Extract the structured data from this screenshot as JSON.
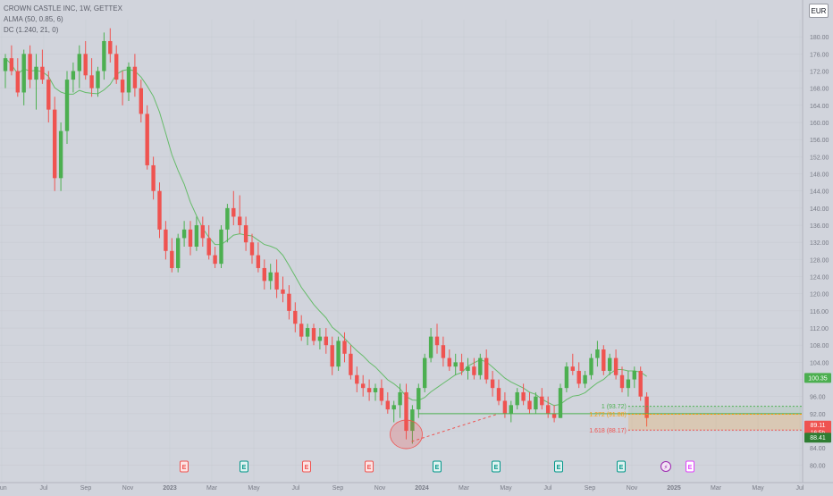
{
  "legend": {
    "title": "CROWN CASTLE INC, 1W, GETTEX",
    "indicator1": "ALMA (50, 0.85, 6)",
    "indicator2": "DC (1.240, 21, 0)"
  },
  "currency_button": "EUR",
  "colors": {
    "background": "#d1d4dc",
    "up": "#4caf50",
    "down": "#ef5350",
    "ma_line": "#66bb6a",
    "fib_green": "#4caf50",
    "fib_orange": "#ff9800",
    "fib_red": "#ef5350"
  },
  "price_labels": {
    "current": "100.35",
    "last_price": "89.11",
    "countdown": "16:5h",
    "fib_low": "88.41"
  },
  "fib_labels": [
    "1 (93.72)",
    "1.272 (91.88)",
    "1.618 (88.17)"
  ],
  "events": [
    {
      "label": "E",
      "kind": "earnings-red"
    },
    {
      "label": "E",
      "kind": "earnings-green"
    },
    {
      "label": "E",
      "kind": "earnings-red"
    },
    {
      "label": "E",
      "kind": "earnings-red"
    },
    {
      "label": "E",
      "kind": "earnings-green"
    },
    {
      "label": "E",
      "kind": "earnings-green"
    },
    {
      "label": "E",
      "kind": "earnings-green"
    },
    {
      "label": "E",
      "kind": "earnings-green"
    },
    {
      "label": "⚡",
      "kind": "split"
    },
    {
      "label": "E",
      "kind": "earnings-future"
    }
  ],
  "chart_data": {
    "type": "candlestick",
    "title": "CROWN CASTLE INC, 1W, GETTEX",
    "y_ticks": [
      180,
      176,
      172,
      168,
      164,
      160,
      156,
      152,
      148,
      144,
      140,
      136,
      132,
      128,
      124,
      120,
      116,
      112,
      108,
      104,
      100,
      96,
      92,
      88,
      84,
      80
    ],
    "ylim": [
      78,
      184
    ],
    "x_ticks": [
      "Jun",
      "Jul",
      "Sep",
      "Nov",
      "2023",
      "Mar",
      "May",
      "Jul",
      "Sep",
      "Nov",
      "2024",
      "Mar",
      "May",
      "Jul",
      "Sep",
      "Nov",
      "2025",
      "Mar",
      "May",
      "Jul"
    ],
    "candles": [
      [
        172,
        176,
        168,
        175
      ],
      [
        175,
        178,
        171,
        172
      ],
      [
        172,
        175,
        166,
        167
      ],
      [
        167,
        177,
        164,
        176
      ],
      [
        176,
        178,
        168,
        170
      ],
      [
        170,
        176,
        163,
        173
      ],
      [
        173,
        177,
        169,
        170
      ],
      [
        170,
        172,
        160,
        163
      ],
      [
        163,
        166,
        144,
        147
      ],
      [
        147,
        160,
        144,
        158
      ],
      [
        158,
        172,
        155,
        170
      ],
      [
        170,
        174,
        167,
        172
      ],
      [
        172,
        178,
        168,
        176
      ],
      [
        176,
        179,
        170,
        171
      ],
      [
        171,
        175,
        166,
        168
      ],
      [
        168,
        173,
        166,
        172
      ],
      [
        172,
        181,
        170,
        179
      ],
      [
        179,
        182,
        174,
        176
      ],
      [
        176,
        178,
        169,
        170
      ],
      [
        170,
        172,
        164,
        167
      ],
      [
        167,
        174,
        165,
        173
      ],
      [
        173,
        176,
        166,
        168
      ],
      [
        168,
        170,
        160,
        162
      ],
      [
        162,
        164,
        149,
        150
      ],
      [
        150,
        152,
        142,
        144
      ],
      [
        144,
        146,
        133,
        135
      ],
      [
        135,
        137,
        128,
        130
      ],
      [
        130,
        133,
        125,
        126
      ],
      [
        126,
        134,
        125,
        133
      ],
      [
        133,
        137,
        131,
        135
      ],
      [
        135,
        137,
        129,
        131
      ],
      [
        131,
        138,
        130,
        136
      ],
      [
        136,
        138,
        131,
        133
      ],
      [
        133,
        136,
        128,
        129
      ],
      [
        129,
        131,
        126,
        127
      ],
      [
        127,
        136,
        126,
        135
      ],
      [
        135,
        141,
        132,
        140
      ],
      [
        140,
        144,
        136,
        138
      ],
      [
        138,
        143,
        134,
        136
      ],
      [
        136,
        138,
        130,
        132
      ],
      [
        132,
        134,
        127,
        129
      ],
      [
        129,
        132,
        125,
        126
      ],
      [
        126,
        128,
        121,
        123
      ],
      [
        123,
        127,
        121,
        125
      ],
      [
        125,
        128,
        119,
        121
      ],
      [
        121,
        124,
        118,
        120
      ],
      [
        120,
        122,
        114,
        116
      ],
      [
        116,
        118,
        111,
        113
      ],
      [
        113,
        115,
        109,
        110
      ],
      [
        110,
        113,
        108,
        112
      ],
      [
        112,
        113,
        108,
        109
      ],
      [
        109,
        112,
        107,
        110
      ],
      [
        110,
        112,
        106,
        108
      ],
      [
        108,
        110,
        101,
        103
      ],
      [
        103,
        110,
        102,
        109
      ],
      [
        109,
        111,
        104,
        106
      ],
      [
        106,
        108,
        100,
        101
      ],
      [
        101,
        103,
        97,
        99
      ],
      [
        99,
        101,
        96,
        98
      ],
      [
        98,
        100,
        95,
        97
      ],
      [
        97,
        99,
        95,
        98
      ],
      [
        98,
        100,
        94,
        95
      ],
      [
        95,
        97,
        92,
        93
      ],
      [
        93,
        95,
        90,
        94
      ],
      [
        94,
        99,
        91,
        97
      ],
      [
        97,
        99,
        86,
        88
      ],
      [
        88,
        94,
        85,
        93
      ],
      [
        93,
        99,
        91,
        98
      ],
      [
        98,
        106,
        97,
        105
      ],
      [
        105,
        112,
        104,
        110
      ],
      [
        110,
        113,
        106,
        108
      ],
      [
        108,
        110,
        103,
        105
      ],
      [
        105,
        107,
        102,
        103
      ],
      [
        103,
        106,
        101,
        104
      ],
      [
        104,
        106,
        101,
        102
      ],
      [
        102,
        105,
        100,
        103
      ],
      [
        103,
        105,
        100,
        101
      ],
      [
        101,
        106,
        100,
        105
      ],
      [
        105,
        107,
        99,
        100
      ],
      [
        100,
        102,
        96,
        98
      ],
      [
        98,
        100,
        94,
        95
      ],
      [
        95,
        97,
        91,
        92
      ],
      [
        92,
        95,
        90,
        94
      ],
      [
        94,
        98,
        93,
        97
      ],
      [
        97,
        99,
        94,
        95
      ],
      [
        95,
        97,
        92,
        93
      ],
      [
        93,
        97,
        92,
        96
      ],
      [
        96,
        98,
        93,
        94
      ],
      [
        94,
        96,
        91,
        92
      ],
      [
        92,
        94,
        90,
        91
      ],
      [
        91,
        99,
        91,
        98
      ],
      [
        98,
        104,
        97,
        103
      ],
      [
        103,
        106,
        101,
        102
      ],
      [
        102,
        104,
        98,
        99
      ],
      [
        99,
        102,
        98,
        101
      ],
      [
        101,
        106,
        100,
        105
      ],
      [
        105,
        109,
        103,
        107
      ],
      [
        107,
        108,
        101,
        102
      ],
      [
        102,
        106,
        101,
        105
      ],
      [
        105,
        107,
        100,
        101
      ],
      [
        101,
        103,
        97,
        98
      ],
      [
        98,
        102,
        96,
        100
      ],
      [
        100,
        103,
        98,
        102
      ],
      [
        102,
        103,
        95,
        96
      ],
      [
        96,
        97,
        89,
        91
      ]
    ],
    "fib_levels": [
      {
        "ratio": "1",
        "price": 93.72
      },
      {
        "ratio": "1.272",
        "price": 91.88
      },
      {
        "ratio": "1.618",
        "price": 88.17
      }
    ],
    "support_level": 92,
    "current_price": 100.35,
    "last_price": 89.11
  }
}
